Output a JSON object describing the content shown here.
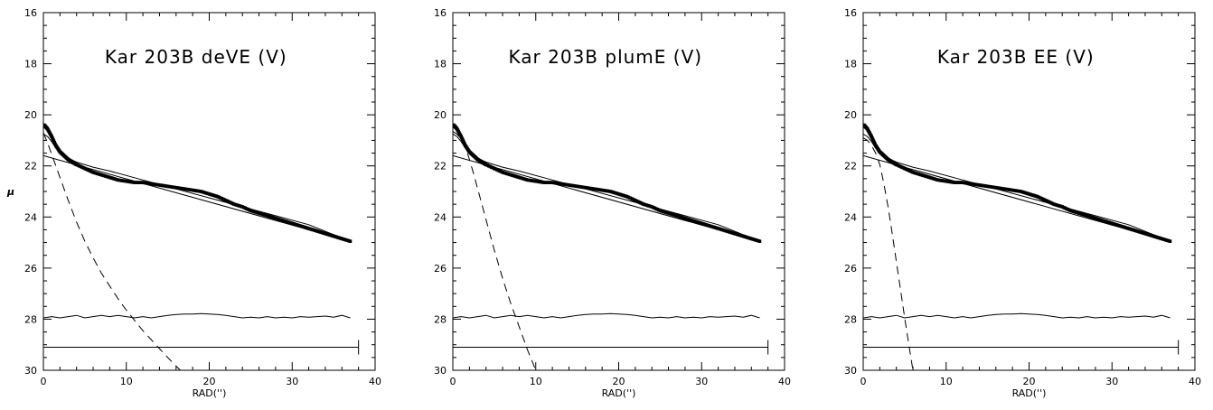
{
  "chart_data": [
    {
      "type": "line",
      "title": "Kar 203B deVE (V)",
      "xlabel": "RAD('')",
      "ylabel": "μ",
      "xlim": [
        0,
        40
      ],
      "ylim": [
        30,
        16
      ],
      "x_ticks": [
        0,
        10,
        20,
        30,
        40
      ],
      "y_ticks": [
        16,
        18,
        20,
        22,
        24,
        26,
        28,
        30
      ],
      "grid": false,
      "series": [
        {
          "style": "points",
          "x": [
            0.1,
            0.5,
            1.0,
            1.5,
            2,
            2.5,
            3,
            3.5,
            4,
            5,
            6,
            7,
            8,
            9,
            10,
            11,
            12,
            13,
            14,
            15,
            16,
            17,
            18,
            19,
            20,
            21,
            22,
            23,
            24,
            25,
            26,
            27,
            28,
            29,
            30,
            31,
            32,
            33,
            34,
            35,
            36,
            37
          ],
          "y": [
            20.4,
            20.55,
            20.85,
            21.2,
            21.45,
            21.6,
            21.75,
            21.85,
            21.95,
            22.1,
            22.25,
            22.35,
            22.45,
            22.55,
            22.6,
            22.65,
            22.65,
            22.7,
            22.75,
            22.8,
            22.85,
            22.9,
            22.95,
            23.0,
            23.1,
            23.2,
            23.35,
            23.5,
            23.6,
            23.75,
            23.85,
            23.95,
            24.05,
            24.15,
            24.25,
            24.35,
            24.45,
            24.55,
            24.65,
            24.75,
            24.85,
            24.95
          ]
        },
        {
          "style": "solid",
          "x": [
            0,
            37
          ],
          "y": [
            21.6,
            24.95
          ]
        },
        {
          "style": "solid",
          "x": [
            0,
            0.5,
            1,
            1.5,
            2,
            3,
            4,
            6,
            8,
            12,
            16,
            20,
            24,
            28,
            32,
            37
          ],
          "y": [
            20.75,
            20.85,
            21.05,
            21.3,
            21.45,
            21.7,
            21.85,
            22.05,
            22.2,
            22.55,
            22.9,
            23.25,
            23.6,
            23.95,
            24.3,
            24.95
          ]
        },
        {
          "style": "dashed",
          "x": [
            0,
            0.5,
            1,
            1.5,
            2,
            3,
            4,
            5,
            6,
            7,
            8,
            9,
            10,
            11,
            12,
            13,
            14,
            15,
            16.5
          ],
          "y": [
            20.7,
            21.1,
            21.55,
            22.0,
            22.45,
            23.35,
            24.2,
            24.95,
            25.6,
            26.2,
            26.7,
            27.2,
            27.65,
            28.05,
            28.45,
            28.8,
            29.15,
            29.5,
            30.0
          ]
        },
        {
          "style": "solid",
          "x": [
            0,
            1,
            2,
            3,
            4,
            5,
            6,
            7,
            8,
            9,
            10,
            11,
            12,
            13,
            14,
            15,
            16,
            17,
            18,
            19,
            20,
            21,
            22,
            23,
            24,
            25,
            26,
            27,
            28,
            29,
            30,
            31,
            32,
            33,
            34,
            35,
            36,
            37
          ],
          "y": [
            27.95,
            27.9,
            27.95,
            27.9,
            27.85,
            27.95,
            27.9,
            27.85,
            27.9,
            27.85,
            27.9,
            27.95,
            27.9,
            27.95,
            27.9,
            27.85,
            27.82,
            27.8,
            27.8,
            27.78,
            27.8,
            27.82,
            27.85,
            27.9,
            27.95,
            27.92,
            27.95,
            27.9,
            27.95,
            27.92,
            27.95,
            27.9,
            27.92,
            27.9,
            27.88,
            27.92,
            27.85,
            27.95
          ]
        },
        {
          "style": "solid",
          "x": [
            0,
            38
          ],
          "y": [
            29.1,
            29.1
          ]
        }
      ]
    },
    {
      "type": "line",
      "title": "Kar 203B plumE (V)",
      "xlabel": "RAD('')",
      "ylabel": "",
      "xlim": [
        0,
        40
      ],
      "ylim": [
        30,
        16
      ],
      "x_ticks": [
        0,
        10,
        20,
        30,
        40
      ],
      "y_ticks": [
        16,
        18,
        20,
        22,
        24,
        26,
        28,
        30
      ],
      "grid": false,
      "series": [
        {
          "style": "points",
          "x": [
            0.1,
            0.5,
            1.0,
            1.5,
            2,
            2.5,
            3,
            3.5,
            4,
            5,
            6,
            7,
            8,
            9,
            10,
            11,
            12,
            13,
            14,
            15,
            16,
            17,
            18,
            19,
            20,
            21,
            22,
            23,
            24,
            25,
            26,
            27,
            28,
            29,
            30,
            31,
            32,
            33,
            34,
            35,
            36,
            37
          ],
          "y": [
            20.4,
            20.55,
            20.85,
            21.2,
            21.45,
            21.6,
            21.75,
            21.85,
            21.95,
            22.1,
            22.25,
            22.35,
            22.45,
            22.55,
            22.6,
            22.65,
            22.65,
            22.7,
            22.75,
            22.8,
            22.85,
            22.9,
            22.95,
            23.0,
            23.1,
            23.2,
            23.35,
            23.5,
            23.6,
            23.75,
            23.85,
            23.95,
            24.05,
            24.15,
            24.25,
            24.35,
            24.45,
            24.55,
            24.65,
            24.75,
            24.85,
            24.95
          ]
        },
        {
          "style": "solid",
          "x": [
            0,
            37
          ],
          "y": [
            21.6,
            24.95
          ]
        },
        {
          "style": "solid",
          "x": [
            0,
            0.5,
            1,
            1.5,
            2,
            3,
            4,
            6,
            8,
            12,
            16,
            20,
            24,
            28,
            32,
            37
          ],
          "y": [
            20.75,
            20.85,
            21.05,
            21.3,
            21.45,
            21.7,
            21.85,
            22.05,
            22.2,
            22.55,
            22.9,
            23.25,
            23.6,
            23.95,
            24.3,
            24.95
          ]
        },
        {
          "style": "dashed",
          "x": [
            0,
            0.5,
            1,
            1.5,
            2,
            2.5,
            3,
            3.5,
            4,
            4.5,
            5,
            5.5,
            6,
            6.5,
            7,
            7.5,
            8,
            8.5,
            9,
            9.5,
            10
          ],
          "y": [
            20.65,
            20.75,
            20.95,
            21.25,
            21.75,
            22.3,
            22.9,
            23.5,
            24.1,
            24.7,
            25.3,
            25.85,
            26.4,
            26.9,
            27.4,
            27.85,
            28.3,
            28.75,
            29.2,
            29.6,
            30.0
          ]
        },
        {
          "style": "solid",
          "x": [
            0,
            1,
            2,
            3,
            4,
            5,
            6,
            7,
            8,
            9,
            10,
            11,
            12,
            13,
            14,
            15,
            16,
            17,
            18,
            19,
            20,
            21,
            22,
            23,
            24,
            25,
            26,
            27,
            28,
            29,
            30,
            31,
            32,
            33,
            34,
            35,
            36,
            37
          ],
          "y": [
            27.95,
            27.9,
            27.95,
            27.9,
            27.85,
            27.95,
            27.9,
            27.85,
            27.9,
            27.85,
            27.9,
            27.95,
            27.9,
            27.95,
            27.9,
            27.85,
            27.82,
            27.8,
            27.8,
            27.78,
            27.8,
            27.82,
            27.85,
            27.9,
            27.95,
            27.92,
            27.95,
            27.9,
            27.95,
            27.92,
            27.95,
            27.9,
            27.92,
            27.9,
            27.88,
            27.92,
            27.85,
            27.95
          ]
        },
        {
          "style": "solid",
          "x": [
            0,
            38
          ],
          "y": [
            29.1,
            29.1
          ]
        }
      ]
    },
    {
      "type": "line",
      "title": "Kar 203B EE (V)",
      "xlabel": "RAD('')",
      "ylabel": "",
      "xlim": [
        0,
        40
      ],
      "ylim": [
        30,
        16
      ],
      "x_ticks": [
        0,
        10,
        20,
        30,
        40
      ],
      "y_ticks": [
        16,
        18,
        20,
        22,
        24,
        26,
        28,
        30
      ],
      "grid": false,
      "series": [
        {
          "style": "points",
          "x": [
            0.1,
            0.5,
            1.0,
            1.5,
            2,
            2.5,
            3,
            3.5,
            4,
            5,
            6,
            7,
            8,
            9,
            10,
            11,
            12,
            13,
            14,
            15,
            16,
            17,
            18,
            19,
            20,
            21,
            22,
            23,
            24,
            25,
            26,
            27,
            28,
            29,
            30,
            31,
            32,
            33,
            34,
            35,
            36,
            37
          ],
          "y": [
            20.4,
            20.55,
            20.85,
            21.2,
            21.45,
            21.6,
            21.75,
            21.85,
            21.95,
            22.1,
            22.25,
            22.35,
            22.45,
            22.55,
            22.6,
            22.65,
            22.65,
            22.7,
            22.75,
            22.8,
            22.85,
            22.9,
            22.95,
            23.0,
            23.1,
            23.2,
            23.35,
            23.5,
            23.6,
            23.75,
            23.85,
            23.95,
            24.05,
            24.15,
            24.25,
            24.35,
            24.45,
            24.55,
            24.65,
            24.75,
            24.85,
            24.95
          ]
        },
        {
          "style": "solid",
          "x": [
            0,
            37
          ],
          "y": [
            21.6,
            24.95
          ]
        },
        {
          "style": "solid",
          "x": [
            0,
            0.5,
            1,
            1.5,
            2,
            3,
            4,
            6,
            8,
            12,
            16,
            20,
            24,
            28,
            32,
            37
          ],
          "y": [
            20.75,
            20.85,
            21.05,
            21.3,
            21.45,
            21.7,
            21.85,
            22.05,
            22.2,
            22.55,
            22.9,
            23.25,
            23.6,
            23.95,
            24.3,
            24.95
          ]
        },
        {
          "style": "dashed",
          "x": [
            0,
            0.5,
            1,
            1.5,
            2,
            2.5,
            3,
            3.5,
            4,
            4.5,
            5,
            5.5,
            6
          ],
          "y": [
            20.9,
            21.0,
            21.2,
            21.5,
            21.95,
            22.7,
            23.6,
            24.65,
            25.75,
            26.85,
            27.95,
            29.0,
            30.0
          ]
        },
        {
          "style": "solid",
          "x": [
            0,
            1,
            2,
            3,
            4,
            5,
            6,
            7,
            8,
            9,
            10,
            11,
            12,
            13,
            14,
            15,
            16,
            17,
            18,
            19,
            20,
            21,
            22,
            23,
            24,
            25,
            26,
            27,
            28,
            29,
            30,
            31,
            32,
            33,
            34,
            35,
            36,
            37
          ],
          "y": [
            27.95,
            27.9,
            27.95,
            27.9,
            27.85,
            27.95,
            27.9,
            27.85,
            27.9,
            27.85,
            27.9,
            27.95,
            27.9,
            27.95,
            27.9,
            27.85,
            27.82,
            27.8,
            27.8,
            27.78,
            27.8,
            27.82,
            27.85,
            27.9,
            27.95,
            27.92,
            27.95,
            27.9,
            27.95,
            27.92,
            27.95,
            27.9,
            27.92,
            27.9,
            27.88,
            27.92,
            27.85,
            27.95
          ]
        },
        {
          "style": "solid",
          "x": [
            0,
            38
          ],
          "y": [
            29.1,
            29.1
          ]
        }
      ]
    }
  ]
}
